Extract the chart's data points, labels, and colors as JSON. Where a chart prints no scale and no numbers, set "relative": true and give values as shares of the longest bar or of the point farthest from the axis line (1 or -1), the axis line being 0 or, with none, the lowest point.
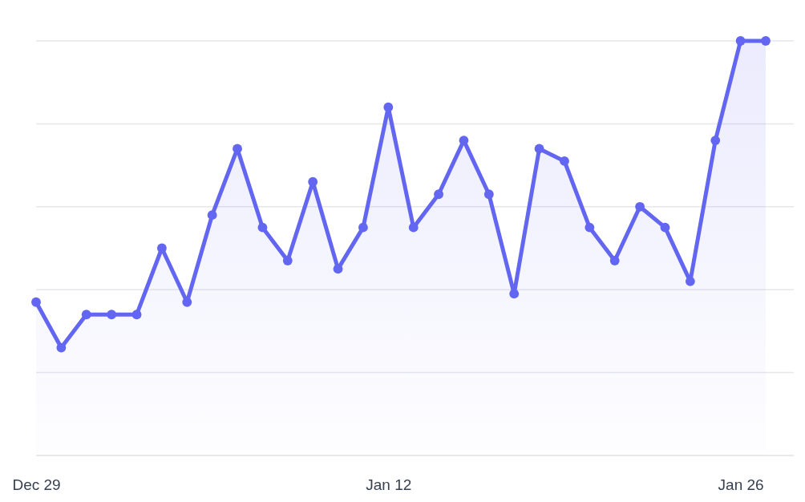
{
  "chart_data": {
    "type": "area",
    "relative": true,
    "grid": "y",
    "marker": "circle",
    "line_style": "solid",
    "categories": [
      "Dec 29",
      null,
      null,
      null,
      null,
      null,
      null,
      null,
      null,
      null,
      null,
      null,
      null,
      null,
      "Jan 12",
      null,
      null,
      null,
      null,
      null,
      null,
      null,
      null,
      null,
      null,
      null,
      null,
      null,
      "Jan 26",
      null
    ],
    "series": [
      {
        "color": "#6366f1",
        "values": [
          0.37,
          0.26,
          0.34,
          0.34,
          0.34,
          0.5,
          0.37,
          0.58,
          0.74,
          0.55,
          0.47,
          0.66,
          0.45,
          0.55,
          0.84,
          0.55,
          0.63,
          0.76,
          0.63,
          0.39,
          0.74,
          0.71,
          0.55,
          0.47,
          0.6,
          0.55,
          0.42,
          0.76,
          1,
          1
        ]
      }
    ]
  }
}
